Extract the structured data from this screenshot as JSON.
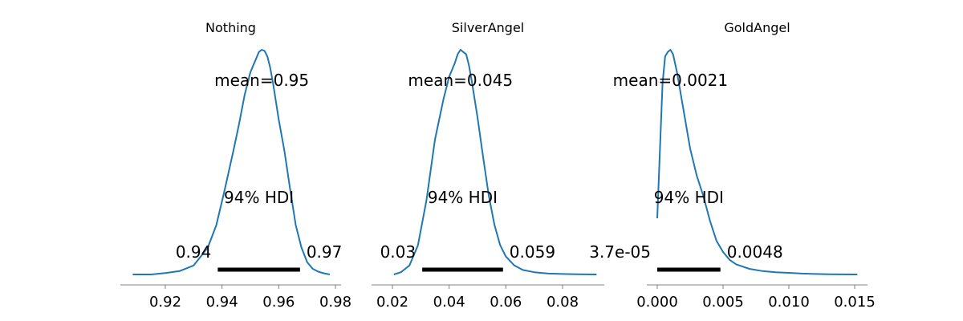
{
  "chart_data": [
    {
      "type": "area",
      "title": "Nothing",
      "xlim": [
        0.906,
        0.98
      ],
      "xticks": [
        {
          "value": 0.92,
          "label": "0.92"
        },
        {
          "value": 0.94,
          "label": "0.94"
        },
        {
          "value": 0.96,
          "label": "0.96"
        },
        {
          "value": 0.98,
          "label": "0.98"
        }
      ],
      "mean_text": "mean=0.95",
      "hdi_text": "94% HDI",
      "hdi": [
        0.9385,
        0.9675
      ],
      "hdi_low_label": "0.94",
      "hdi_high_label": "0.97",
      "density": {
        "x": [
          0.9085,
          0.915,
          0.92,
          0.925,
          0.93,
          0.935,
          0.938,
          0.941,
          0.944,
          0.946,
          0.948,
          0.95,
          0.952,
          0.953,
          0.954,
          0.955,
          0.956,
          0.957,
          0.958,
          0.96,
          0.962,
          0.964,
          0.966,
          0.968,
          0.97,
          0.972,
          0.974,
          0.976,
          0.978
        ],
        "y": [
          0.0,
          0.0,
          0.006,
          0.015,
          0.04,
          0.12,
          0.22,
          0.38,
          0.55,
          0.67,
          0.8,
          0.9,
          0.96,
          0.99,
          1.0,
          0.995,
          0.97,
          0.92,
          0.85,
          0.69,
          0.55,
          0.38,
          0.22,
          0.12,
          0.055,
          0.025,
          0.012,
          0.005,
          0.0
        ]
      }
    },
    {
      "type": "area",
      "title": "SilverAngel",
      "xlim": [
        0.018,
        0.095
      ],
      "xticks": [
        {
          "value": 0.02,
          "label": "0.02"
        },
        {
          "value": 0.04,
          "label": "0.04"
        },
        {
          "value": 0.06,
          "label": "0.06"
        },
        {
          "value": 0.08,
          "label": "0.08"
        }
      ],
      "mean_text": "mean=0.045",
      "hdi_text": "94% HDI",
      "hdi": [
        0.0305,
        0.059
      ],
      "hdi_low_label": "0.03",
      "hdi_high_label": "0.059",
      "density": {
        "x": [
          0.0205,
          0.023,
          0.026,
          0.029,
          0.032,
          0.035,
          0.038,
          0.04,
          0.042,
          0.043,
          0.044,
          0.045,
          0.046,
          0.047,
          0.048,
          0.05,
          0.052,
          0.054,
          0.056,
          0.058,
          0.06,
          0.063,
          0.066,
          0.07,
          0.075,
          0.08,
          0.085,
          0.092
        ],
        "y": [
          0.0,
          0.01,
          0.04,
          0.13,
          0.33,
          0.6,
          0.78,
          0.88,
          0.94,
          0.98,
          1.0,
          0.99,
          0.98,
          0.93,
          0.86,
          0.7,
          0.52,
          0.35,
          0.22,
          0.13,
          0.08,
          0.04,
          0.02,
          0.01,
          0.004,
          0.002,
          0.001,
          0.0
        ]
      }
    },
    {
      "type": "area",
      "title": "GoldAngel",
      "xlim": [
        -0.001,
        0.0163
      ],
      "xticks": [
        {
          "value": 0.0,
          "label": "0.000"
        },
        {
          "value": 0.005,
          "label": "0.005"
        },
        {
          "value": 0.01,
          "label": "0.010"
        },
        {
          "value": 0.015,
          "label": "0.015"
        }
      ],
      "mean_text": "mean=0.0021",
      "hdi_text": "94% HDI",
      "hdi": [
        0.0,
        0.0048
      ],
      "hdi_low_label": "3.7e-05",
      "hdi_high_label": "0.0048",
      "density": {
        "x": [
          0.0,
          0.0002,
          0.0004,
          0.0006,
          0.0008,
          0.001,
          0.0012,
          0.0015,
          0.002,
          0.0025,
          0.003,
          0.0035,
          0.004,
          0.0045,
          0.005,
          0.0055,
          0.006,
          0.007,
          0.008,
          0.009,
          0.01,
          0.011,
          0.012,
          0.013,
          0.014,
          0.0152
        ],
        "y": [
          0.25,
          0.55,
          0.85,
          0.97,
          0.99,
          1.0,
          0.98,
          0.9,
          0.73,
          0.56,
          0.44,
          0.35,
          0.24,
          0.15,
          0.1,
          0.065,
          0.045,
          0.025,
          0.015,
          0.01,
          0.007,
          0.004,
          0.002,
          0.001,
          0.0005,
          0.0
        ]
      }
    }
  ]
}
